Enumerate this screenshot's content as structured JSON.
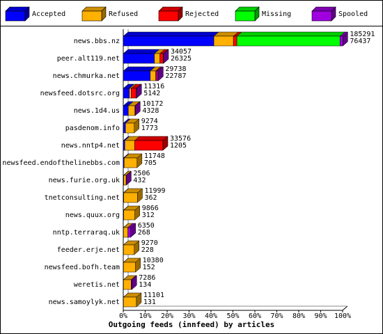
{
  "chart_data": {
    "type": "bar",
    "orientation": "horizontal",
    "stacked": true,
    "x_label": "Outgoing feeds (innfeed) by articles",
    "categories": [
      "news.bbs.nz",
      "peer.alt119.net",
      "news.chmurka.net",
      "newsfeed.dotsrc.org",
      "news.1d4.us",
      "pasdenom.info",
      "news.nntp4.net",
      "newsfeed.endofthelinebbs.com",
      "news.furie.org.uk",
      "tnetconsulting.net",
      "news.quux.org",
      "nntp.terraraq.uk",
      "feeder.erje.net",
      "newsfeed.bofh.team",
      "weretis.net",
      "news.samoylyk.net"
    ],
    "offered": [
      185291,
      34057,
      29738,
      11316,
      10172,
      9274,
      33576,
      11748,
      2506,
      11999,
      9866,
      6350,
      9270,
      10380,
      7286,
      11101
    ],
    "accepted": [
      76437,
      26325,
      22787,
      5142,
      4328,
      1773,
      1205,
      705,
      432,
      362,
      312,
      268,
      228,
      152,
      134,
      131
    ],
    "series": [
      {
        "name": "Accepted",
        "color": "#0000ff",
        "values": [
          41.3,
          14.2,
          12.3,
          2.8,
          2.3,
          1.0,
          0.7,
          0.4,
          0.2,
          0.2,
          0.2,
          0.1,
          0.1,
          0.1,
          0.1,
          0.1
        ]
      },
      {
        "name": "Refused",
        "color": "#ffb000",
        "values": [
          8.9,
          2.5,
          2.5,
          0.8,
          3.0,
          4.0,
          4.5,
          5.9,
          1.1,
          6.3,
          5.1,
          2.0,
          4.9,
          5.5,
          3.5,
          5.9
        ]
      },
      {
        "name": "Rejected",
        "color": "#ff0000",
        "values": [
          1.6,
          1.5,
          0.5,
          2.3,
          0,
          0,
          12.9,
          0,
          0,
          0,
          0,
          0,
          0,
          0,
          0,
          0
        ]
      },
      {
        "name": "Missing",
        "color": "#00ff00",
        "values": [
          47,
          0,
          0,
          0,
          0,
          0,
          0,
          0,
          0,
          0,
          0,
          0,
          0,
          0,
          0,
          0
        ]
      },
      {
        "name": "Spooled",
        "color": "#a000e0",
        "values": [
          1.3,
          0.2,
          0.7,
          0.2,
          0.2,
          0,
          0,
          0,
          0.1,
          0,
          0,
          1.3,
          0,
          0,
          0.3,
          0
        ]
      }
    ],
    "xlim": [
      0,
      100
    ],
    "xticks": [
      {
        "value": 0,
        "label": "0%"
      },
      {
        "value": 10,
        "label": "10%"
      },
      {
        "value": 20,
        "label": "20%"
      },
      {
        "value": 30,
        "label": "30%"
      },
      {
        "value": 40,
        "label": "40%"
      },
      {
        "value": 50,
        "label": "50%"
      },
      {
        "value": 60,
        "label": "60%"
      },
      {
        "value": 70,
        "label": "70%"
      },
      {
        "value": 80,
        "label": "80%"
      },
      {
        "value": 90,
        "label": "90%"
      },
      {
        "value": 100,
        "label": "100%"
      }
    ]
  }
}
